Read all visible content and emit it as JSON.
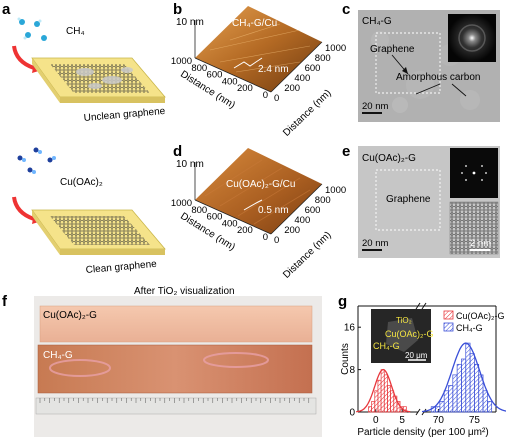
{
  "panels": {
    "a": {
      "letter": "a",
      "top_gas": "CH₄",
      "top_caption": "Unclean graphene",
      "bottom_gas": "Cu(OAc)₂",
      "bottom_caption": "Clean graphene"
    },
    "b": {
      "letter": "b",
      "title": "CH₄-G/Cu",
      "z_label": "10 nm",
      "roughness": "2.4 nm",
      "axis_label_left": "Distance (nm)",
      "axis_label_right": "Distance (nm)",
      "ticks_left": [
        "1000",
        "800",
        "600",
        "400",
        "200",
        "0"
      ],
      "ticks_right": [
        "0",
        "200",
        "400",
        "600",
        "800",
        "1000"
      ]
    },
    "c": {
      "letter": "c",
      "title": "CH₄-G",
      "label_graphene": "Graphene",
      "label_amorphous": "Amorphous carbon",
      "scale_bar": "20 nm"
    },
    "d": {
      "letter": "d",
      "title": "Cu(OAc)₂-G/Cu",
      "z_label": "10 nm",
      "roughness": "0.5 nm",
      "axis_label_left": "Distance (nm)",
      "axis_label_right": "Distance (nm)",
      "ticks_left": [
        "1000",
        "800",
        "600",
        "400",
        "200",
        "0"
      ],
      "ticks_right": [
        "0",
        "200",
        "400",
        "600",
        "800",
        "1000"
      ]
    },
    "e": {
      "letter": "e",
      "title": "Cu(OAc)₂-G",
      "label_graphene": "Graphene",
      "scale_bar": "20 nm",
      "inset_scale_bar": "2 nm"
    },
    "f": {
      "letter": "f",
      "title": "After TiO₂ visualization",
      "label_top": "Cu(OAc)₂-G",
      "label_bottom": "CH₄-G"
    },
    "g": {
      "letter": "g",
      "inset_tio2": "TiO₂",
      "inset_cuoac": "Cu(OAc)₂-G",
      "inset_ch4": "CH₄-G",
      "inset_scale": "20 μm"
    }
  },
  "chart_data": {
    "type": "bar",
    "xlabel": "Particle density (per 100 μm²)",
    "ylabel": "Counts",
    "x_break": [
      8,
      68
    ],
    "ylim": [
      0,
      20
    ],
    "y_ticks": [
      0,
      8,
      16
    ],
    "x_ticks": [
      0,
      5,
      70,
      75
    ],
    "legend_placement": "top-right",
    "series": [
      {
        "name": "Cu(OAc)₂-G",
        "color": "#e8383d",
        "bin_width": 0.6,
        "x": [
          -1.4,
          -0.8,
          -0.2,
          0.4,
          1.0,
          1.6,
          2.2,
          2.8,
          3.4,
          4.0,
          4.6,
          5.2
        ],
        "values": [
          1,
          2,
          4,
          6,
          8,
          7,
          5,
          4,
          3,
          2,
          1,
          1
        ],
        "fit_mean": 1.4,
        "fit_sigma": 1.6,
        "fit_peak": 8
      },
      {
        "name": "CH₄-G",
        "color": "#3a4fd8",
        "bin_width": 0.6,
        "x": [
          69.0,
          69.6,
          70.2,
          70.8,
          71.4,
          72.0,
          72.6,
          73.2,
          73.8,
          74.4,
          75.0,
          75.6,
          76.2,
          76.8
        ],
        "values": [
          1,
          1,
          2,
          4,
          5,
          7,
          9,
          10,
          13,
          11,
          9,
          7,
          4,
          2
        ],
        "fit_mean": 73.8,
        "fit_sigma": 1.9,
        "fit_peak": 13
      }
    ]
  }
}
